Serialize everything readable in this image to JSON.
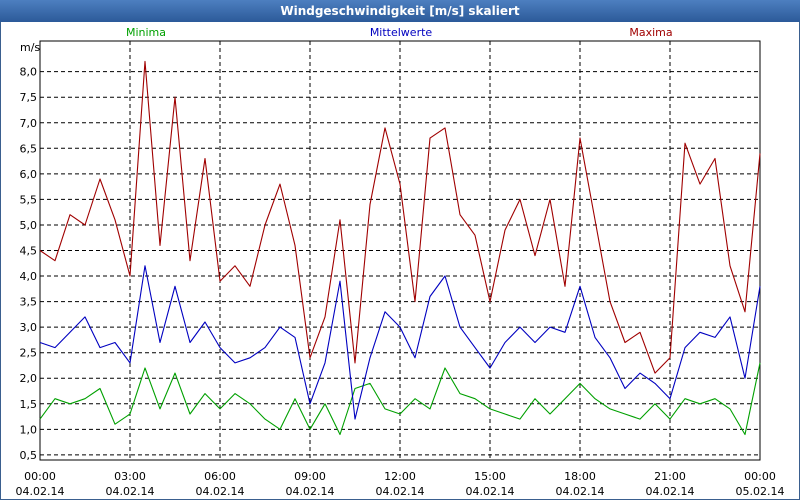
{
  "title": "Windgeschwindigkeit [m/s] skaliert",
  "chart_data": {
    "type": "line",
    "title": "Windgeschwindigkeit [m/s] skaliert",
    "ylabel": "m/s",
    "xlabel": "",
    "ylim": [
      0.4,
      8.6
    ],
    "xlim": [
      0,
      24
    ],
    "y_ticks": [
      "0,5",
      "1,0",
      "1,5",
      "2,0",
      "2,5",
      "3,0",
      "3,5",
      "4,0",
      "4,5",
      "5,0",
      "5,5",
      "6,0",
      "6,5",
      "7,0",
      "7,5",
      "8,0"
    ],
    "y_tick_values": [
      0.5,
      1.0,
      1.5,
      2.0,
      2.5,
      3.0,
      3.5,
      4.0,
      4.5,
      5.0,
      5.5,
      6.0,
      6.5,
      7.0,
      7.5,
      8.0
    ],
    "x_ticks": [
      {
        "time": "00:00",
        "date": "04.02.14",
        "h": 0
      },
      {
        "time": "03:00",
        "date": "04.02.14",
        "h": 3
      },
      {
        "time": "06:00",
        "date": "04.02.14",
        "h": 6
      },
      {
        "time": "09:00",
        "date": "04.02.14",
        "h": 9
      },
      {
        "time": "12:00",
        "date": "04.02.14",
        "h": 12
      },
      {
        "time": "15:00",
        "date": "04.02.14",
        "h": 15
      },
      {
        "time": "18:00",
        "date": "04.02.14",
        "h": 18
      },
      {
        "time": "21:00",
        "date": "04.02.14",
        "h": 21
      },
      {
        "time": "00:00",
        "date": "05.02.14",
        "h": 24
      }
    ],
    "x_hours": [
      0,
      0.5,
      1,
      1.5,
      2,
      2.5,
      3,
      3.5,
      4,
      4.5,
      5,
      5.5,
      6,
      6.5,
      7,
      7.5,
      8,
      8.5,
      9,
      9.5,
      10,
      10.5,
      11,
      11.5,
      12,
      12.5,
      13,
      13.5,
      14,
      14.5,
      15,
      15.5,
      16,
      16.5,
      17,
      17.5,
      18,
      18.5,
      19,
      19.5,
      20,
      20.5,
      21,
      21.5,
      22,
      22.5,
      23,
      23.5,
      24
    ],
    "series": [
      {
        "name": "Minima",
        "color": "#00a000",
        "values": [
          1.2,
          1.6,
          1.5,
          1.6,
          1.8,
          1.1,
          1.3,
          2.2,
          1.4,
          2.1,
          1.3,
          1.7,
          1.4,
          1.7,
          1.5,
          1.2,
          1.0,
          1.6,
          1.0,
          1.5,
          0.9,
          1.8,
          1.9,
          1.4,
          1.3,
          1.6,
          1.4,
          2.2,
          1.7,
          1.6,
          1.4,
          1.3,
          1.2,
          1.6,
          1.3,
          1.6,
          1.9,
          1.6,
          1.4,
          1.3,
          1.2,
          1.5,
          1.2,
          1.6,
          1.5,
          1.6,
          1.4,
          0.9,
          2.3
        ]
      },
      {
        "name": "Mittelwerte",
        "color": "#0000c0",
        "values": [
          2.7,
          2.6,
          2.9,
          3.2,
          2.6,
          2.7,
          2.3,
          4.2,
          2.7,
          3.8,
          2.7,
          3.1,
          2.6,
          2.3,
          2.4,
          2.6,
          3.0,
          2.8,
          1.5,
          2.3,
          3.9,
          1.2,
          2.4,
          3.3,
          3.0,
          2.4,
          3.6,
          4.0,
          3.0,
          2.6,
          2.2,
          2.7,
          3.0,
          2.7,
          3.0,
          2.9,
          3.8,
          2.8,
          2.4,
          1.8,
          2.1,
          1.9,
          1.6,
          2.6,
          2.9,
          2.8,
          3.2,
          2.0,
          3.8
        ]
      },
      {
        "name": "Maxima",
        "color": "#a00000",
        "values": [
          4.5,
          4.3,
          5.2,
          5.0,
          5.9,
          5.1,
          4.0,
          8.2,
          4.6,
          7.5,
          4.3,
          6.3,
          3.9,
          4.2,
          3.8,
          5.0,
          5.8,
          4.6,
          2.4,
          3.2,
          5.1,
          2.3,
          5.4,
          6.9,
          5.8,
          3.5,
          6.7,
          6.9,
          5.2,
          4.8,
          3.5,
          4.9,
          5.5,
          4.4,
          5.5,
          3.8,
          6.7,
          5.1,
          3.5,
          2.7,
          2.9,
          2.1,
          2.4,
          6.6,
          5.8,
          6.3,
          4.2,
          3.3,
          6.4
        ]
      }
    ]
  }
}
